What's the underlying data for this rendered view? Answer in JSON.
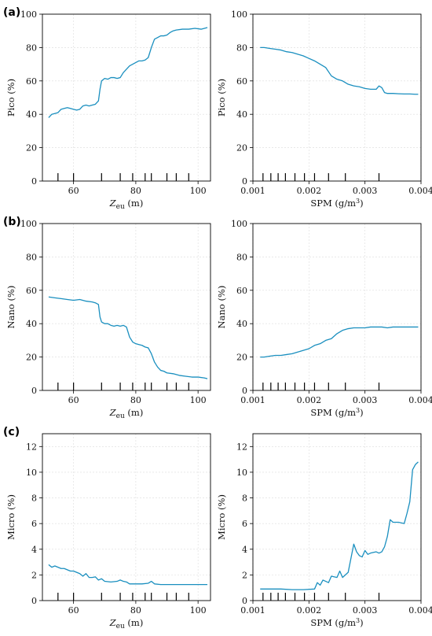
{
  "chart_data": [
    {
      "type": "line",
      "panel_label": "(a)",
      "xlabel": "Z_eu (m)",
      "ylabel": "Pico (%)",
      "xlim": [
        50,
        104
      ],
      "ylim": [
        0,
        100
      ],
      "xticks": [
        60,
        80,
        100
      ],
      "yticks": [
        0,
        20,
        40,
        60,
        80,
        100
      ],
      "grid": true,
      "color": "#1a8fbf",
      "rug": [
        55,
        60,
        69,
        75,
        79,
        83,
        85,
        90,
        93,
        97
      ],
      "series": [
        {
          "x": [
            52,
            53,
            55,
            56,
            57,
            58,
            59,
            60,
            61,
            62,
            63,
            64,
            65,
            66,
            67,
            68,
            68.5,
            69,
            70,
            71,
            72,
            73,
            74,
            75,
            76,
            77,
            78,
            79,
            80,
            81,
            82,
            83,
            84,
            85,
            86,
            87,
            88,
            89,
            90,
            91,
            92,
            93,
            95,
            97,
            99,
            101,
            103
          ],
          "y": [
            38,
            40,
            41,
            43,
            43.5,
            44,
            43.5,
            43,
            42.5,
            43,
            45,
            45.5,
            45,
            45.5,
            46,
            48,
            55,
            60,
            61.5,
            61,
            62,
            62,
            61.5,
            62,
            65,
            67,
            69,
            70,
            71,
            72,
            72,
            72.5,
            74,
            80,
            85,
            86,
            87,
            87,
            87.5,
            89,
            90,
            90.5,
            91,
            91,
            91.5,
            91,
            92
          ]
        }
      ]
    },
    {
      "type": "line",
      "panel_label": "",
      "xlabel": "SPM (g/m³)",
      "ylabel": "Pico (%)",
      "xlim": [
        0.001,
        0.004
      ],
      "ylim": [
        0,
        100
      ],
      "xticks": [
        0.001,
        0.002,
        0.003,
        0.004
      ],
      "yticks": [
        0,
        20,
        40,
        60,
        80,
        100
      ],
      "grid": true,
      "color": "#1a8fbf",
      "rug": [
        0.00118,
        0.00132,
        0.00145,
        0.00158,
        0.00175,
        0.00192,
        0.0021,
        0.00235,
        0.00265,
        0.00325
      ],
      "series": [
        {
          "x": [
            0.00113,
            0.0012,
            0.0013,
            0.0014,
            0.0015,
            0.0016,
            0.0017,
            0.0018,
            0.0019,
            0.002,
            0.0021,
            0.0022,
            0.0023,
            0.0024,
            0.0025,
            0.0026,
            0.0027,
            0.0028,
            0.0029,
            0.003,
            0.0031,
            0.0032,
            0.00325,
            0.0033,
            0.00335,
            0.0034,
            0.0035,
            0.0036,
            0.0037,
            0.0038,
            0.0039,
            0.00395
          ],
          "y": [
            80,
            80,
            79.5,
            79,
            78.5,
            77.5,
            77,
            76,
            75,
            73.5,
            72,
            70,
            68,
            63,
            61,
            60,
            58,
            57,
            56.5,
            55.5,
            55,
            55,
            57,
            56,
            53,
            52.5,
            52.5,
            52.3,
            52.2,
            52.2,
            52,
            52
          ]
        }
      ]
    },
    {
      "type": "line",
      "panel_label": "(b)",
      "xlabel": "Z_eu (m)",
      "ylabel": "Nano (%)",
      "xlim": [
        50,
        104
      ],
      "ylim": [
        0,
        100
      ],
      "xticks": [
        60,
        80,
        100
      ],
      "yticks": [
        0,
        20,
        40,
        60,
        80,
        100
      ],
      "grid": true,
      "color": "#1a8fbf",
      "rug": [
        55,
        60,
        69,
        75,
        79,
        83,
        85,
        90,
        93,
        97
      ],
      "series": [
        {
          "x": [
            52,
            54,
            56,
            58,
            60,
            62,
            64,
            66,
            67,
            68,
            68.5,
            69,
            70,
            71,
            72,
            73,
            74,
            75,
            76,
            77,
            78,
            79,
            80,
            81,
            82,
            83,
            84,
            85,
            86,
            87,
            88,
            89,
            90,
            92,
            94,
            96,
            98,
            100,
            102,
            103
          ],
          "y": [
            56,
            55.5,
            55,
            54.5,
            54,
            54.5,
            53.5,
            53,
            52.5,
            51.5,
            44,
            41,
            40,
            40,
            39,
            38.5,
            39,
            38.5,
            39,
            38,
            32,
            29,
            28,
            27.5,
            27,
            26,
            25.5,
            22,
            17,
            14,
            12,
            11.5,
            10.5,
            10,
            9,
            8.5,
            8,
            8,
            7.5,
            7
          ]
        }
      ]
    },
    {
      "type": "line",
      "panel_label": "",
      "xlabel": "SPM (g/m³)",
      "ylabel": "Nano (%)",
      "xlim": [
        0.001,
        0.004
      ],
      "ylim": [
        0,
        100
      ],
      "xticks": [
        0.001,
        0.002,
        0.003,
        0.004
      ],
      "yticks": [
        0,
        20,
        40,
        60,
        80,
        100
      ],
      "grid": true,
      "color": "#1a8fbf",
      "rug": [
        0.00118,
        0.00132,
        0.00145,
        0.00158,
        0.00175,
        0.00192,
        0.0021,
        0.00235,
        0.00265,
        0.00325
      ],
      "series": [
        {
          "x": [
            0.00113,
            0.0012,
            0.0013,
            0.0014,
            0.0015,
            0.0016,
            0.0017,
            0.0018,
            0.0019,
            0.002,
            0.0021,
            0.0022,
            0.0023,
            0.0024,
            0.0025,
            0.0026,
            0.0027,
            0.0028,
            0.0029,
            0.003,
            0.0031,
            0.0032,
            0.0033,
            0.0034,
            0.0035,
            0.0036,
            0.0037,
            0.0038,
            0.0039,
            0.00395
          ],
          "y": [
            20,
            20,
            20.5,
            21,
            21,
            21.5,
            22,
            23,
            24,
            25,
            27,
            28,
            30,
            31,
            34,
            36,
            37,
            37.5,
            37.5,
            37.5,
            38,
            38,
            38,
            37.5,
            38,
            38,
            38,
            38,
            38,
            38
          ]
        }
      ]
    },
    {
      "type": "line",
      "panel_label": "(c)",
      "xlabel": "Z_eu (m)",
      "ylabel": "Micro (%)",
      "xlim": [
        50,
        104
      ],
      "ylim": [
        0,
        13
      ],
      "xticks": [
        60,
        80,
        100
      ],
      "yticks": [
        0,
        2,
        4,
        6,
        8,
        10,
        12
      ],
      "grid": true,
      "color": "#1a8fbf",
      "rug": [
        55,
        60,
        69,
        75,
        79,
        83,
        85,
        90,
        93,
        97
      ],
      "series": [
        {
          "x": [
            52,
            53,
            54,
            55,
            56,
            57,
            58,
            59,
            60,
            61,
            62,
            63,
            64,
            65,
            66,
            67,
            68,
            69,
            70,
            72,
            74,
            75,
            76,
            77,
            78,
            80,
            82,
            84,
            85,
            86,
            88,
            90,
            95,
            100,
            103
          ],
          "y": [
            2.8,
            2.6,
            2.7,
            2.6,
            2.5,
            2.5,
            2.4,
            2.3,
            2.3,
            2.2,
            2.1,
            1.9,
            2.1,
            1.8,
            1.8,
            1.85,
            1.6,
            1.7,
            1.5,
            1.45,
            1.5,
            1.6,
            1.5,
            1.45,
            1.3,
            1.3,
            1.3,
            1.35,
            1.5,
            1.3,
            1.25,
            1.25,
            1.25,
            1.25,
            1.25
          ]
        }
      ]
    },
    {
      "type": "line",
      "panel_label": "",
      "xlabel": "SPM (g/m³)",
      "ylabel": "Micro (%)",
      "xlim": [
        0.001,
        0.004
      ],
      "ylim": [
        0,
        13
      ],
      "xticks": [
        0.001,
        0.002,
        0.003,
        0.004
      ],
      "yticks": [
        0,
        2,
        4,
        6,
        8,
        10,
        12
      ],
      "grid": true,
      "color": "#1a8fbf",
      "rug": [
        0.00118,
        0.00132,
        0.00145,
        0.00158,
        0.00175,
        0.00192,
        0.0021,
        0.00235,
        0.00265,
        0.00325
      ],
      "series": [
        {
          "x": [
            0.00113,
            0.0013,
            0.0015,
            0.0017,
            0.0019,
            0.0021,
            0.00215,
            0.0022,
            0.00225,
            0.0023,
            0.00235,
            0.0024,
            0.0025,
            0.00255,
            0.0026,
            0.0027,
            0.0028,
            0.00285,
            0.0029,
            0.00295,
            0.003,
            0.00305,
            0.0031,
            0.0032,
            0.00325,
            0.0033,
            0.00335,
            0.0034,
            0.00345,
            0.0035,
            0.0036,
            0.0037,
            0.00375,
            0.0038,
            0.00385,
            0.0039,
            0.00395
          ],
          "y": [
            0.9,
            0.9,
            0.9,
            0.85,
            0.85,
            0.9,
            1.4,
            1.2,
            1.6,
            1.5,
            1.4,
            1.9,
            1.8,
            2.3,
            1.8,
            2.2,
            4.4,
            3.8,
            3.5,
            3.4,
            3.9,
            3.6,
            3.7,
            3.8,
            3.7,
            3.8,
            4.2,
            5.0,
            6.3,
            6.1,
            6.1,
            6.0,
            6.8,
            7.7,
            10.2,
            10.6,
            10.8
          ]
        }
      ]
    }
  ]
}
